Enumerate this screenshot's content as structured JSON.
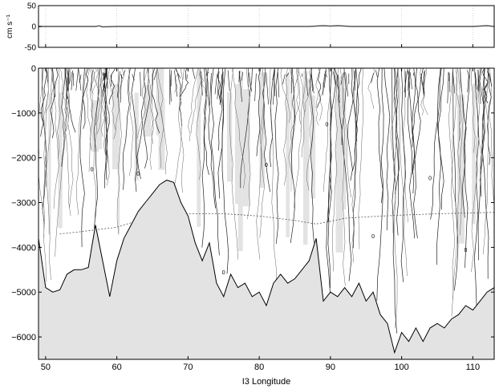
{
  "chart_data": [
    {
      "type": "line",
      "panel": "top",
      "ylabel": "cm s⁻¹",
      "xlim": [
        49,
        113
      ],
      "ylim": [
        -50,
        50
      ],
      "yticks": [
        50,
        0,
        -50
      ],
      "xticks": [
        50,
        60,
        70,
        80,
        90,
        100,
        110
      ],
      "grid": "vertical",
      "series": [
        {
          "x": [
            49,
            52,
            55,
            57,
            57.5,
            58,
            60,
            65,
            70,
            75,
            80,
            85,
            87,
            88,
            89,
            90,
            91,
            92,
            93,
            95,
            100,
            105,
            110,
            112,
            113
          ],
          "values": [
            0,
            0,
            0,
            0,
            1.5,
            -1,
            0,
            0,
            0,
            0,
            0,
            0,
            0,
            1,
            2,
            1,
            2,
            1,
            0,
            0,
            0,
            0,
            0,
            2,
            0
          ]
        }
      ]
    },
    {
      "type": "area",
      "panel": "bottom",
      "xlabel": "I3 Longitude",
      "xlim": [
        49,
        113
      ],
      "ylim": [
        -6500,
        0
      ],
      "yticks": [
        0,
        -1000,
        -2000,
        -3000,
        -4000,
        -5000,
        -6000
      ],
      "xticks": [
        50,
        60,
        70,
        80,
        90,
        100,
        110
      ],
      "contour_labels": [
        "0",
        "0",
        "0",
        "0",
        "0",
        "0",
        "0",
        "0"
      ],
      "bottom_depth": {
        "x": [
          49,
          50,
          51,
          52,
          53,
          54,
          55,
          56,
          57,
          58,
          59,
          60,
          61,
          62,
          63,
          64,
          65,
          66,
          67,
          68,
          69,
          70,
          71,
          72,
          73,
          74,
          75,
          76,
          77,
          78,
          79,
          80,
          81,
          82,
          83,
          84,
          85,
          86,
          87,
          88,
          89,
          90,
          91,
          92,
          93,
          94,
          95,
          96,
          97,
          98,
          99,
          100,
          101,
          102,
          103,
          104,
          105,
          106,
          107,
          108,
          109,
          110,
          111,
          112,
          113
        ],
        "values": [
          -3800,
          -4900,
          -5000,
          -4950,
          -4600,
          -4500,
          -4500,
          -4450,
          -3500,
          -4300,
          -5100,
          -4300,
          -3800,
          -3500,
          -3200,
          -3000,
          -2800,
          -2600,
          -2500,
          -2550,
          -3000,
          -3300,
          -3900,
          -4300,
          -3900,
          -4800,
          -5100,
          -4600,
          -4900,
          -4800,
          -5100,
          -5000,
          -5300,
          -4800,
          -4600,
          -4800,
          -4700,
          -4500,
          -4300,
          -3800,
          -5200,
          -5000,
          -5100,
          -4900,
          -5100,
          -4800,
          -5200,
          -5000,
          -5500,
          -5700,
          -6350,
          -5900,
          -6100,
          -5800,
          -6100,
          -5800,
          -5700,
          -5800,
          -5600,
          -5500,
          -5300,
          -5400,
          -5200,
          -5000,
          -4900
        ]
      },
      "neutral_layer": {
        "x": [
          52,
          55,
          60,
          62,
          65,
          70,
          75,
          80,
          85,
          88,
          90,
          92,
          95,
          100,
          105,
          110,
          113
        ],
        "values": [
          -3700,
          -3650,
          -3550,
          -3450,
          -3300,
          -3250,
          -3250,
          -3300,
          -3400,
          -3480,
          -3420,
          -3350,
          -3320,
          -3280,
          -3250,
          -3230,
          -3220
        ]
      }
    }
  ]
}
